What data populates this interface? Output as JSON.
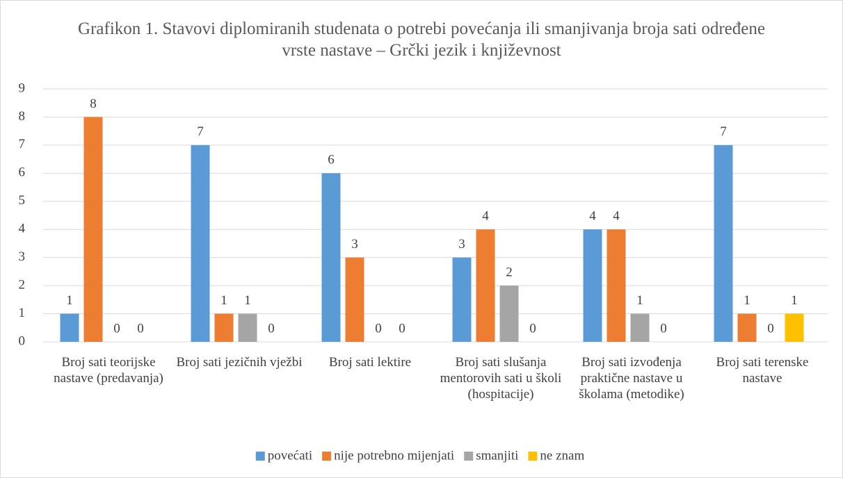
{
  "chart_data": {
    "type": "bar",
    "title": "Grafikon 1. Stavovi diplomiranih studenata o potrebi povećanja ili smanjivanja broja sati određene vrste nastave – Grčki jezik i književnost",
    "categories": [
      "Broj sati teorijske nastave (predavanja)",
      "Broj sati jezičnih vježbi",
      "Broj sati lektire",
      "Broj sati slušanja mentorovih sati u školi (hospitacije)",
      "Broj sati izvođenja praktične nastave u školama (metodike)",
      "Broj sati terenske nastave"
    ],
    "series": [
      {
        "name": "povećati",
        "color": "#5b9bd5",
        "values": [
          1,
          7,
          6,
          3,
          4,
          7
        ]
      },
      {
        "name": "nije potrebno mijenjati",
        "color": "#ed7d31",
        "values": [
          8,
          1,
          3,
          4,
          4,
          1
        ]
      },
      {
        "name": "smanjiti",
        "color": "#a5a5a5",
        "values": [
          0,
          1,
          0,
          2,
          1,
          0
        ]
      },
      {
        "name": "ne znam",
        "color": "#ffc000",
        "values": [
          0,
          0,
          0,
          0,
          0,
          1
        ]
      }
    ],
    "ylim": [
      0,
      9
    ],
    "yticks": [
      0,
      1,
      2,
      3,
      4,
      5,
      6,
      7,
      8,
      9
    ],
    "grid": true,
    "legend": "bottom"
  }
}
